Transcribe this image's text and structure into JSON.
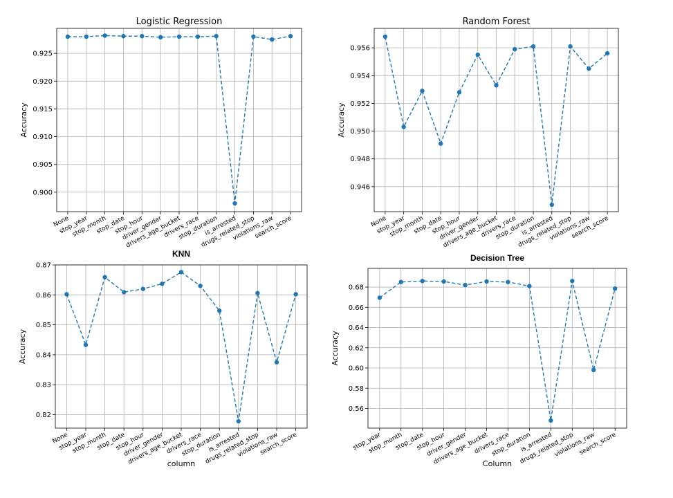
{
  "chart_data": [
    {
      "type": "line",
      "title": "Logistic Regression",
      "xlabel": "",
      "ylabel": "Accuracy",
      "categories": [
        "None",
        "stop_year",
        "stop_month",
        "stop_date",
        "stop_hour",
        "driver_gender",
        "drivers_age_bucket",
        "drivers_race",
        "stop_duration",
        "is_arrested",
        "drugs_related_stop",
        "violations_raw",
        "search_score"
      ],
      "series": [
        {
          "values": [
            0.928,
            0.928,
            0.9282,
            0.9281,
            0.9281,
            0.9279,
            0.928,
            0.928,
            0.9281,
            0.898,
            0.928,
            0.9275,
            0.9281
          ]
        }
      ],
      "ylim": [
        0.8965,
        0.9295
      ],
      "yticks": [
        0.9,
        0.905,
        0.91,
        0.915,
        0.92,
        0.925
      ],
      "ytick_labels": [
        "0.900",
        "0.905",
        "0.910",
        "0.915",
        "0.920",
        "0.925"
      ],
      "grid": true
    },
    {
      "type": "line",
      "title": "Random Forest",
      "xlabel": "",
      "ylabel": "Accuracy",
      "categories": [
        "None",
        "stop_year",
        "stop_month",
        "stop_date",
        "stop_hour",
        "driver_gender",
        "drivers_age_bucket",
        "drivers_race",
        "stop_duration",
        "is_arrested",
        "drugs_related_stop",
        "violations_raw",
        "search_score"
      ],
      "series": [
        {
          "values": [
            0.9568,
            0.9503,
            0.9529,
            0.9491,
            0.9528,
            0.9555,
            0.9533,
            0.9559,
            0.9561,
            0.9447,
            0.9561,
            0.9545,
            0.9556
          ]
        }
      ],
      "ylim": [
        0.9442,
        0.9574
      ],
      "yticks": [
        0.946,
        0.948,
        0.95,
        0.952,
        0.954,
        0.956
      ],
      "ytick_labels": [
        "0.946",
        "0.948",
        "0.950",
        "0.952",
        "0.954",
        "0.956"
      ],
      "grid": true
    },
    {
      "type": "line",
      "title": "KNN",
      "xlabel": "column",
      "ylabel": "Accuracy",
      "categories": [
        "None",
        "stop_year",
        "stop_month",
        "stop_date",
        "stop_hour",
        "driver_gender",
        "drivers_age_bucket",
        "drivers_race",
        "stop_duration",
        "is_arrested",
        "drugs_related_stop",
        "violations_raw",
        "search_score"
      ],
      "series": [
        {
          "values": [
            0.8602,
            0.8433,
            0.8659,
            0.8609,
            0.862,
            0.8637,
            0.8676,
            0.863,
            0.8547,
            0.8178,
            0.8606,
            0.8375,
            0.8602
          ]
        }
      ],
      "ylim": [
        0.8155,
        0.87
      ],
      "yticks": [
        0.82,
        0.83,
        0.84,
        0.85,
        0.86,
        0.87
      ],
      "ytick_labels": [
        "0.82",
        "0.83",
        "0.84",
        "0.85",
        "0.86",
        "0.87"
      ],
      "grid": true
    },
    {
      "type": "line",
      "title": "Decision Tree",
      "xlabel": "Column",
      "ylabel": "Accuracy",
      "categories": [
        "stop_year",
        "stop_month",
        "stop_date",
        "stop_hour",
        "driver_gender",
        "drivers_age_bucket",
        "drivers_race",
        "stop_duration",
        "is_arrested",
        "drugs_related_stop",
        "violations_raw",
        "search_score"
      ],
      "series": [
        {
          "values": [
            0.6695,
            0.685,
            0.686,
            0.6855,
            0.682,
            0.6855,
            0.685,
            0.681,
            0.548,
            0.686,
            0.598,
            0.6785
          ]
        }
      ],
      "ylim": [
        0.5405,
        0.6985
      ],
      "yticks": [
        0.56,
        0.58,
        0.6,
        0.62,
        0.64,
        0.66,
        0.68
      ],
      "ytick_labels": [
        "0.56",
        "0.58",
        "0.60",
        "0.62",
        "0.64",
        "0.66",
        "0.68"
      ],
      "grid": true
    }
  ]
}
